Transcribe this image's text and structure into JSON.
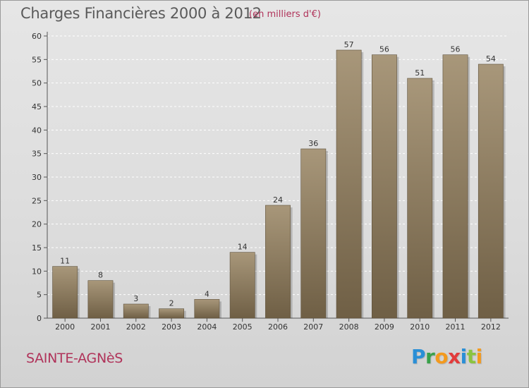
{
  "header": {
    "title": "Charges Financières 2000 à 2012",
    "subtitle": "(en milliers d'€)"
  },
  "footer": {
    "town": "SAINTE-AGNèS",
    "logo_letters": [
      {
        "char": "P",
        "color": "#2a8fd6"
      },
      {
        "char": "r",
        "color": "#3aa14a"
      },
      {
        "char": "o",
        "color": "#f39a1e"
      },
      {
        "char": "x",
        "color": "#e23b3b"
      },
      {
        "char": "i",
        "color": "#2a8fd6"
      },
      {
        "char": "t",
        "color": "#8bc43f"
      },
      {
        "char": "i",
        "color": "#f39a1e"
      }
    ]
  },
  "chart_data": {
    "type": "bar",
    "categories": [
      "2000",
      "2001",
      "2002",
      "2003",
      "2004",
      "2005",
      "2006",
      "2007",
      "2008",
      "2009",
      "2010",
      "2011",
      "2012"
    ],
    "values": [
      11,
      8,
      3,
      2,
      4,
      14,
      24,
      36,
      57,
      56,
      51,
      56,
      54
    ],
    "value_labels": [
      "11",
      "8",
      "3",
      "2",
      "4",
      "14",
      "24",
      "36",
      "57",
      "56",
      "51",
      "56",
      "54"
    ],
    "yticks": [
      "0",
      "5",
      "10",
      "15",
      "20",
      "25",
      "30",
      "35",
      "40",
      "45",
      "50",
      "55",
      "60"
    ],
    "ylim": [
      0,
      60
    ],
    "grid": true,
    "bar_color_top": "#a8977a",
    "bar_color_bottom": "#6f5f45"
  }
}
